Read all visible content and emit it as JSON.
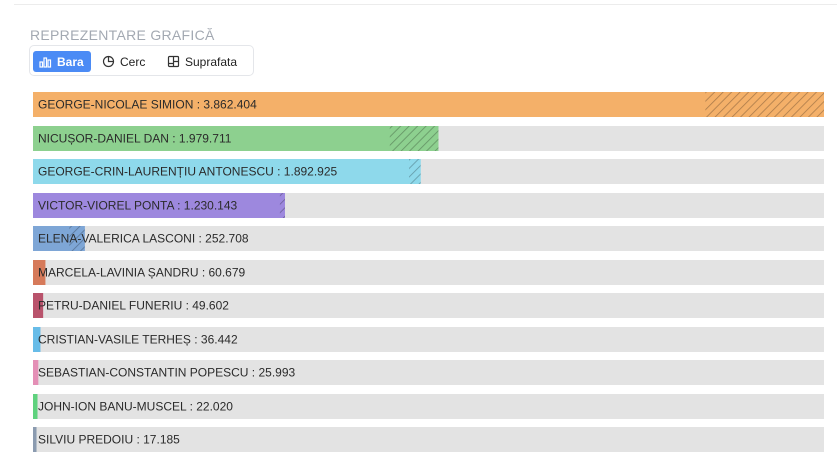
{
  "section": {
    "title": "REPREZENTARE GRAFICĂ"
  },
  "tabs": [
    {
      "label": "Bara",
      "icon": "bar-chart-icon",
      "active": true
    },
    {
      "label": "Cerc",
      "icon": "pie-chart-icon",
      "active": false
    },
    {
      "label": "Suprafata",
      "icon": "area-chart-icon",
      "active": false
    }
  ],
  "chart_data": {
    "type": "bar",
    "orientation": "horizontal",
    "xlim": [
      0,
      3862404
    ],
    "grid": false,
    "series": [
      {
        "name": "GEORGE-NICOLAE SIMION",
        "value": 3862404,
        "label": "GEORGE-NICOLAE SIMION : 3.862.404",
        "color": "#f4b069",
        "hatch_fraction": 0.15
      },
      {
        "name": "NICUȘOR-DANIEL DAN",
        "value": 1979711,
        "label": "NICUȘOR-DANIEL DAN : 1.979.711",
        "color": "#8dd08f",
        "hatch_fraction": 0.12
      },
      {
        "name": "GEORGE-CRIN-LAURENȚIU ANTONESCU",
        "value": 1892925,
        "label": "GEORGE-CRIN-LAURENȚIU ANTONESCU : 1.892.925",
        "color": "#8ed9eb",
        "hatch_fraction": 0.03
      },
      {
        "name": "VICTOR-VIOREL PONTA",
        "value": 1230143,
        "label": "VICTOR-VIOREL PONTA : 1.230.143",
        "color": "#9d88de",
        "hatch_fraction": 0.02
      },
      {
        "name": "ELENA-VALERICA LASCONI",
        "value": 252708,
        "label": "ELENA-VALERICA LASCONI : 252.708",
        "color": "#7ea6d6",
        "hatch_fraction": 0.3
      },
      {
        "name": "MARCELA-LAVINIA ȘANDRU",
        "value": 60679,
        "label": "MARCELA-LAVINIA ȘANDRU : 60.679",
        "color": "#d67a5a",
        "hatch_fraction": 0
      },
      {
        "name": "PETRU-DANIEL FUNERIU",
        "value": 49602,
        "label": "PETRU-DANIEL FUNERIU : 49.602",
        "color": "#b9536c",
        "hatch_fraction": 0
      },
      {
        "name": "CRISTIAN-VASILE TERHEȘ",
        "value": 36442,
        "label": "CRISTIAN-VASILE TERHEȘ : 36.442",
        "color": "#67bce8",
        "hatch_fraction": 0
      },
      {
        "name": "SEBASTIAN-CONSTANTIN POPESCU",
        "value": 25993,
        "label": "SEBASTIAN-CONSTANTIN POPESCU : 25.993",
        "color": "#e48fb6",
        "hatch_fraction": 0
      },
      {
        "name": "JOHN-ION BANU-MUSCEL",
        "value": 22020,
        "label": "JOHN-ION BANU-MUSCEL : 22.020",
        "color": "#5fd27e",
        "hatch_fraction": 0
      },
      {
        "name": "SILVIU PREDOIU",
        "value": 17185,
        "label": "SILVIU PREDOIU : 17.185",
        "color": "#8b9bb0",
        "hatch_fraction": 0
      }
    ]
  }
}
